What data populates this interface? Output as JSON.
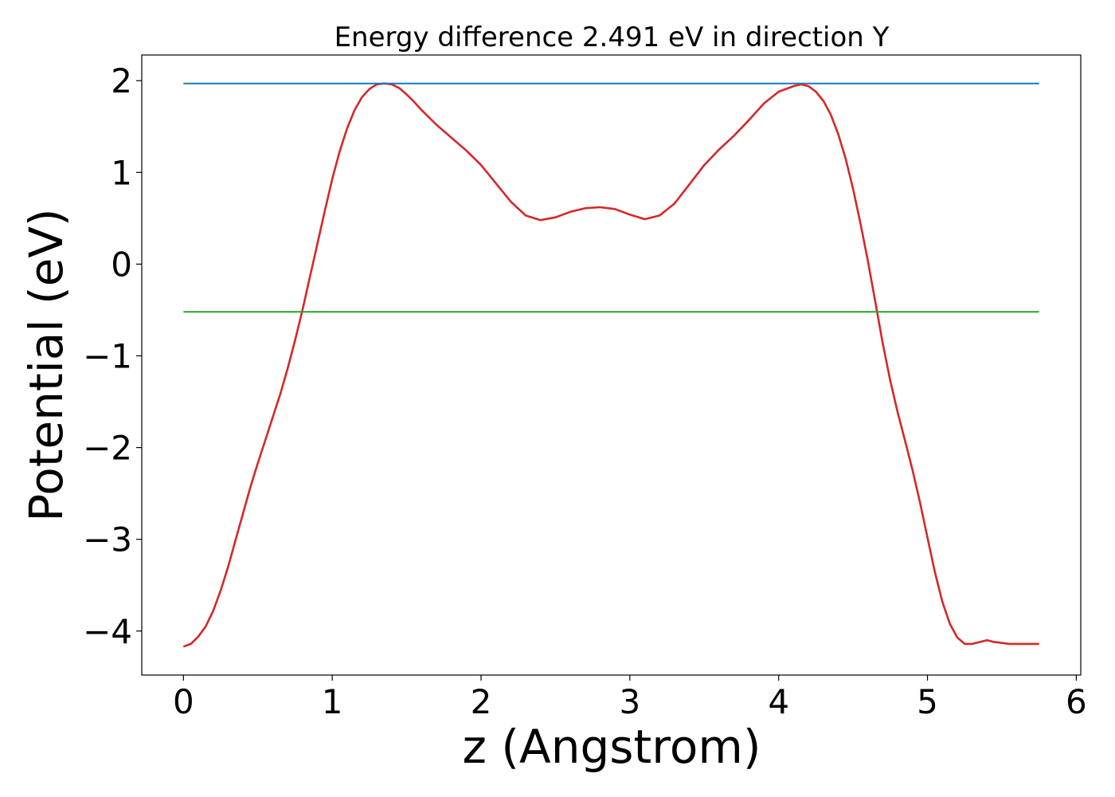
{
  "chart_data": {
    "type": "line",
    "title": "Energy difference 2.491 eV in direction Y",
    "xlabel": "z (Angstrom)",
    "ylabel": "Potential (eV)",
    "xlim": [
      -0.28,
      6.03
    ],
    "ylim": [
      -4.48,
      2.28
    ],
    "xticks": [
      0,
      1,
      2,
      3,
      4,
      5,
      6
    ],
    "xtick_labels": [
      "0",
      "1",
      "2",
      "3",
      "4",
      "5",
      "6"
    ],
    "yticks": [
      2,
      1,
      0,
      -1,
      -2,
      -3,
      -4
    ],
    "ytick_labels": [
      "2",
      "1",
      "0",
      "−1",
      "−2",
      "−3",
      "−4"
    ],
    "grid": false,
    "series": [
      {
        "color": "#d62728",
        "x": [
          0,
          0.05,
          0.1,
          0.15,
          0.2,
          0.25,
          0.3,
          0.35,
          0.4,
          0.45,
          0.5,
          0.55,
          0.6,
          0.65,
          0.7,
          0.75,
          0.8,
          0.85,
          0.9,
          0.95,
          1.0,
          1.05,
          1.1,
          1.15,
          1.2,
          1.25,
          1.3,
          1.35,
          1.4,
          1.45,
          1.5,
          1.55,
          1.6,
          1.7,
          1.8,
          1.9,
          2.0,
          2.1,
          2.2,
          2.3,
          2.4,
          2.5,
          2.6,
          2.7,
          2.8,
          2.9,
          3.0,
          3.1,
          3.2,
          3.3,
          3.4,
          3.5,
          3.6,
          3.7,
          3.8,
          3.9,
          4.0,
          4.1,
          4.15,
          4.2,
          4.25,
          4.3,
          4.35,
          4.4,
          4.45,
          4.5,
          4.55,
          4.6,
          4.65,
          4.7,
          4.75,
          4.8,
          4.85,
          4.9,
          4.95,
          5.0,
          5.05,
          5.1,
          5.15,
          5.2,
          5.25,
          5.3,
          5.35,
          5.4,
          5.45,
          5.5,
          5.55,
          5.6,
          5.65,
          5.7,
          5.75
        ],
        "y": [
          -4.17,
          -4.14,
          -4.06,
          -3.95,
          -3.78,
          -3.56,
          -3.3,
          -3.01,
          -2.72,
          -2.43,
          -2.17,
          -1.92,
          -1.67,
          -1.42,
          -1.14,
          -0.83,
          -0.5,
          -0.14,
          0.22,
          0.58,
          0.93,
          1.23,
          1.48,
          1.68,
          1.82,
          1.91,
          1.96,
          1.97,
          1.96,
          1.92,
          1.85,
          1.77,
          1.68,
          1.52,
          1.38,
          1.24,
          1.08,
          0.88,
          0.68,
          0.53,
          0.48,
          0.51,
          0.57,
          0.61,
          0.62,
          0.6,
          0.54,
          0.49,
          0.53,
          0.66,
          0.87,
          1.08,
          1.25,
          1.4,
          1.57,
          1.75,
          1.88,
          1.94,
          1.96,
          1.94,
          1.88,
          1.78,
          1.63,
          1.42,
          1.15,
          0.82,
          0.44,
          0.03,
          -0.42,
          -0.87,
          -1.27,
          -1.62,
          -1.93,
          -2.25,
          -2.6,
          -2.98,
          -3.36,
          -3.68,
          -3.92,
          -4.07,
          -4.14,
          -4.14,
          -4.12,
          -4.1,
          -4.12,
          -4.13,
          -4.14,
          -4.14,
          -4.14,
          -4.14,
          -4.14
        ]
      },
      {
        "color": "#1f77b4",
        "x": [
          0,
          5.75
        ],
        "y": [
          1.97,
          1.97
        ]
      },
      {
        "color": "#2ca02c",
        "x": [
          0,
          5.75
        ],
        "y": [
          -0.52,
          -0.52
        ]
      }
    ]
  }
}
